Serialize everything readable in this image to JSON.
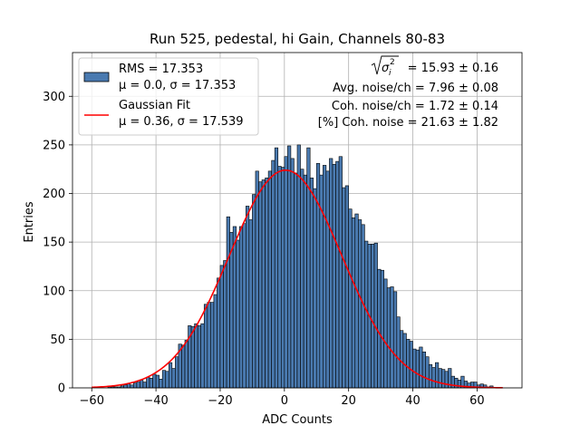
{
  "chart_data": {
    "type": "bar",
    "title": "Run 525, pedestal, hi Gain, Channels 80-83",
    "xlabel": "ADC Counts",
    "ylabel": "Entries",
    "xlim": [
      -66,
      74
    ],
    "ylim": [
      0,
      345
    ],
    "xticks": [
      -60,
      -40,
      -20,
      0,
      20,
      40,
      60
    ],
    "yticks": [
      0,
      50,
      100,
      150,
      200,
      250,
      300
    ],
    "grid": true,
    "bin_width": 1,
    "bin_start": -60,
    "histogram_counts": [
      0,
      0,
      0,
      0,
      0,
      1,
      1,
      1,
      1,
      2,
      3,
      4,
      3,
      5,
      6,
      8,
      6,
      11,
      10,
      14,
      13,
      9,
      18,
      17,
      26,
      20,
      32,
      45,
      44,
      49,
      64,
      63,
      66,
      64,
      66,
      86,
      88,
      88,
      96,
      113,
      126,
      131,
      176,
      160,
      166,
      152,
      166,
      169,
      187,
      173,
      199,
      223,
      212,
      214,
      216,
      223,
      234,
      247,
      228,
      227,
      238,
      249,
      236,
      221,
      250,
      225,
      219,
      247,
      216,
      205,
      231,
      219,
      229,
      223,
      236,
      230,
      233,
      238,
      206,
      208,
      184,
      175,
      179,
      173,
      168,
      151,
      148,
      148,
      149,
      122,
      121,
      112,
      103,
      104,
      99,
      73,
      59,
      56,
      50,
      48,
      40,
      39,
      42,
      37,
      32,
      24,
      21,
      26,
      20,
      19,
      17,
      20,
      12,
      10,
      8,
      12,
      7,
      5,
      6,
      6,
      3,
      4,
      3,
      1,
      2,
      0,
      0,
      0,
      0
    ],
    "series": [
      {
        "name": "RMS = 17.353",
        "name_line2": "μ = 0.0, σ = 17.353",
        "type": "histogram",
        "color": "#4a7ab0"
      },
      {
        "name": "Gaussian Fit",
        "name_line2": "μ = 0.36, σ = 17.539",
        "type": "line",
        "color": "#ff0000",
        "mu": 0.36,
        "sigma": 17.539,
        "amplitude": 224,
        "x_range": [
          -60,
          68
        ]
      }
    ],
    "legend_position": "top-left",
    "annotations": {
      "sigma_text_prefix": "σ",
      "sigma_text_sub": "i",
      "sigma_text_sup": "2",
      "sigma_value": " = 15.93 ± 0.16",
      "avg_noise": "Avg. noise/ch = 7.96 ± 0.08",
      "coh_noise": "Coh. noise/ch = 1.72 ± 0.14",
      "pct_coh_noise": "[%] Coh. noise = 21.63 ± 1.82"
    }
  }
}
